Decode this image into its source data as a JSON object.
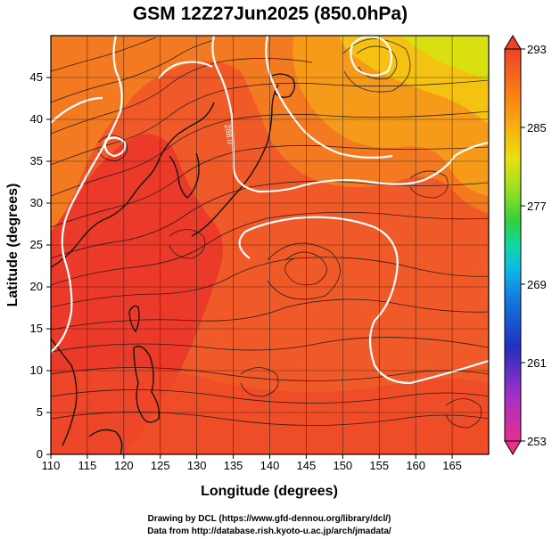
{
  "title": "GSM 12Z27Jun2025 (850.0hPa)",
  "xlabel": "Longitude (degrees)",
  "ylabel": "Latitude  (degrees)",
  "credits": [
    "Drawing by DCL (https://www.gfd-dennou.org/library/dcl/)",
    "Data from http://database.rish.kyoto-u.ac.jp/arch/jmadata/"
  ],
  "chart_data": {
    "type": "heatmap",
    "title": "GSM 12Z27Jun2025 (850.0hPa)",
    "xlabel": "Longitude (degrees)",
    "ylabel": "Latitude  (degrees)",
    "xlim": [
      110,
      170
    ],
    "ylim": [
      0,
      50
    ],
    "xticks": [
      "110",
      "115",
      "120",
      "125",
      "130",
      "135",
      "140",
      "145",
      "150",
      "155",
      "160",
      "165"
    ],
    "yticks": [
      "0",
      "5",
      "10",
      "15",
      "20",
      "25",
      "30",
      "35",
      "40",
      "45"
    ],
    "colorbar": {
      "min": 253,
      "max": 293,
      "labels": [
        "293",
        "285",
        "277",
        "269",
        "261",
        "253"
      ],
      "colors": [
        "#e8308c",
        "#a030c8",
        "#2030c0",
        "#1478e0",
        "#10b8e8",
        "#10d8a0",
        "#30d040",
        "#98e020",
        "#e8e010",
        "#f8b010",
        "#f87818",
        "#f04028"
      ]
    },
    "grid": true,
    "contour_label": "288.0"
  }
}
